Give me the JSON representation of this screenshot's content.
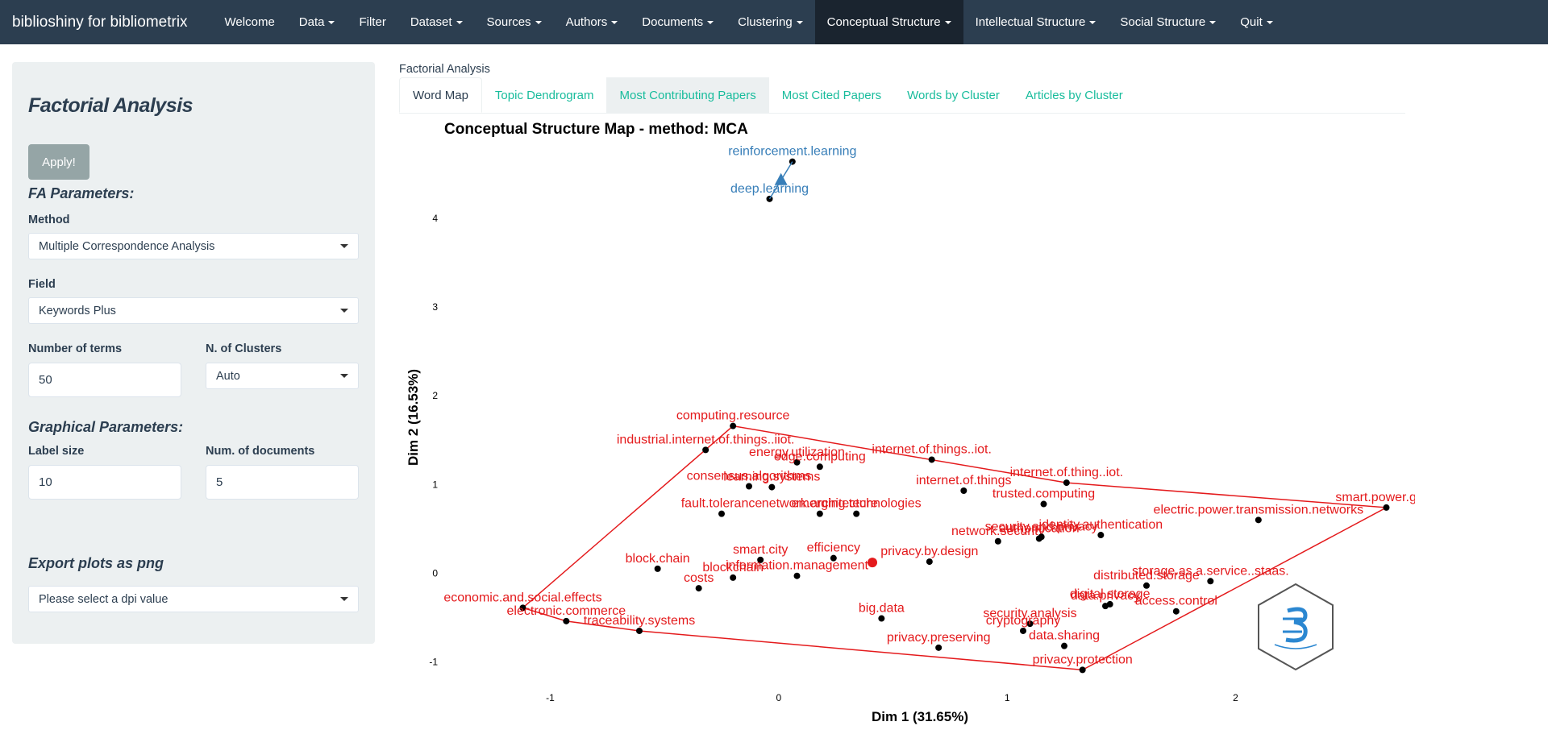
{
  "navbar": {
    "brand": "biblioshiny for bibliometrix",
    "items": [
      {
        "label": "Welcome",
        "caret": false
      },
      {
        "label": "Data",
        "caret": true
      },
      {
        "label": "Filter",
        "caret": false
      },
      {
        "label": "Dataset",
        "caret": true
      },
      {
        "label": "Sources",
        "caret": true
      },
      {
        "label": "Authors",
        "caret": true
      },
      {
        "label": "Documents",
        "caret": true
      },
      {
        "label": "Clustering",
        "caret": true
      },
      {
        "label": "Conceptual Structure",
        "caret": true,
        "active": true
      },
      {
        "label": "Intellectual Structure",
        "caret": true
      },
      {
        "label": "Social Structure",
        "caret": true
      },
      {
        "label": "Quit",
        "caret": true
      }
    ]
  },
  "sidebar": {
    "title": "Factorial Analysis",
    "apply_label": "Apply!",
    "fa_params_label": "FA Parameters:",
    "method_label": "Method",
    "method_value": "Multiple Correspondence Analysis",
    "field_label": "Field",
    "field_value": "Keywords Plus",
    "nterms_label": "Number of terms",
    "nterms_value": "50",
    "nclusters_label": "N. of Clusters",
    "nclusters_value": "Auto",
    "graph_params_label": "Graphical Parameters:",
    "labelsize_label": "Label size",
    "labelsize_value": "10",
    "numdocs_label": "Num. of documents",
    "numdocs_value": "5",
    "export_label": "Export plots as png",
    "export_value": "Please select a dpi value"
  },
  "main": {
    "title": "Factorial Analysis",
    "tabs": [
      {
        "label": "Word Map",
        "active": true
      },
      {
        "label": "Topic Dendrogram"
      },
      {
        "label": "Most Contributing Papers",
        "hover": true
      },
      {
        "label": "Most Cited Papers"
      },
      {
        "label": "Words by Cluster"
      },
      {
        "label": "Articles by Cluster"
      }
    ]
  },
  "chart_data": {
    "type": "scatter",
    "title": "Conceptual Structure Map - method: MCA",
    "xlabel": "Dim 1 (31.65%)",
    "ylabel": "Dim 2 (16.53%)",
    "xticks": [
      -1,
      0,
      1,
      2
    ],
    "yticks": [
      -1,
      0,
      1,
      2,
      3,
      4
    ],
    "xlim": [
      -1.15,
      2.75
    ],
    "ylim": [
      -1.35,
      4.7
    ],
    "colors": {
      "cluster1": "#e41a1c",
      "cluster2": "#377eb8"
    },
    "clusters": [
      {
        "color": "#e41a1c",
        "centroid": [
          0.41,
          0.12
        ],
        "hull": [
          [
            -1.12,
            -0.39
          ],
          [
            -0.2,
            1.66
          ],
          [
            1.26,
            1.02
          ],
          [
            2.66,
            0.74
          ],
          [
            1.33,
            -1.09
          ],
          [
            -0.61,
            -0.65
          ],
          [
            -0.93,
            -0.54
          ]
        ],
        "points": [
          {
            "label": "computing.resource",
            "x": -0.2,
            "y": 1.66
          },
          {
            "label": "industrial.internet.of.things..iiot.",
            "x": -0.32,
            "y": 1.39
          },
          {
            "label": "energy.utilization",
            "x": 0.08,
            "y": 1.25
          },
          {
            "label": "internet.of.things..iot.",
            "x": 0.67,
            "y": 1.28
          },
          {
            "label": "internet.of.things",
            "x": 0.81,
            "y": 0.93
          },
          {
            "label": "internet.of.thing..iot.",
            "x": 1.26,
            "y": 1.02
          },
          {
            "label": "consensus.algorithms",
            "x": -0.13,
            "y": 0.98
          },
          {
            "label": "edge.computing",
            "x": 0.18,
            "y": 1.2
          },
          {
            "label": "learning.systems",
            "x": -0.03,
            "y": 0.97
          },
          {
            "label": "trusted.computing",
            "x": 1.16,
            "y": 0.78
          },
          {
            "label": "emerging.technologies",
            "x": 0.34,
            "y": 0.67
          },
          {
            "label": "fault.tolerance",
            "x": -0.25,
            "y": 0.67
          },
          {
            "label": "network.architecture",
            "x": 0.18,
            "y": 0.67
          },
          {
            "label": "network.security",
            "x": 0.96,
            "y": 0.36
          },
          {
            "label": "security.and.privacy",
            "x": 1.15,
            "y": 0.41
          },
          {
            "label": "identity.authentication",
            "x": 1.41,
            "y": 0.43
          },
          {
            "label": "smart.power.grids",
            "x": 2.66,
            "y": 0.74
          },
          {
            "label": "electric.power.transmission.networks",
            "x": 2.1,
            "y": 0.6
          },
          {
            "label": "block.chain",
            "x": -0.53,
            "y": 0.05
          },
          {
            "label": "smart.city",
            "x": -0.08,
            "y": 0.15
          },
          {
            "label": "efficiency",
            "x": 0.24,
            "y": 0.17
          },
          {
            "label": "blockchain",
            "x": -0.2,
            "y": -0.05
          },
          {
            "label": "privacy.by.design",
            "x": 0.66,
            "y": 0.13
          },
          {
            "label": "distributed.storage",
            "x": 1.61,
            "y": -0.14
          },
          {
            "label": "information.management",
            "x": 0.08,
            "y": -0.03
          },
          {
            "label": "economic.and.social.effects",
            "x": -1.12,
            "y": -0.39
          },
          {
            "label": "costs",
            "x": -0.35,
            "y": -0.17
          },
          {
            "label": "digital.storage",
            "x": 1.45,
            "y": -0.35
          },
          {
            "label": "storage.as.a.service..staas.",
            "x": 1.89,
            "y": -0.09
          },
          {
            "label": "electronic.commerce",
            "x": -0.93,
            "y": -0.54
          },
          {
            "label": "security.analysis",
            "x": 1.1,
            "y": -0.57
          },
          {
            "label": "data.privacy",
            "x": 1.43,
            "y": -0.37
          },
          {
            "label": "access.control",
            "x": 1.74,
            "y": -0.43
          },
          {
            "label": "traceability.systems",
            "x": -0.61,
            "y": -0.65
          },
          {
            "label": "big.data",
            "x": 0.45,
            "y": -0.51
          },
          {
            "label": "cryptography",
            "x": 1.07,
            "y": -0.65
          },
          {
            "label": "privacy.preserving",
            "x": 0.7,
            "y": -0.84
          },
          {
            "label": "data.sharing",
            "x": 1.25,
            "y": -0.82
          },
          {
            "label": "privacy.protection",
            "x": 1.33,
            "y": -1.09
          },
          {
            "label": "authentication",
            "x": 1.14,
            "y": 0.39
          }
        ]
      },
      {
        "color": "#377eb8",
        "centroid": [
          0.01,
          4.43
        ],
        "points": [
          {
            "label": "reinforcement.learning",
            "x": 0.06,
            "y": 4.64
          },
          {
            "label": "deep.learning",
            "x": -0.04,
            "y": 4.22
          }
        ]
      }
    ]
  }
}
